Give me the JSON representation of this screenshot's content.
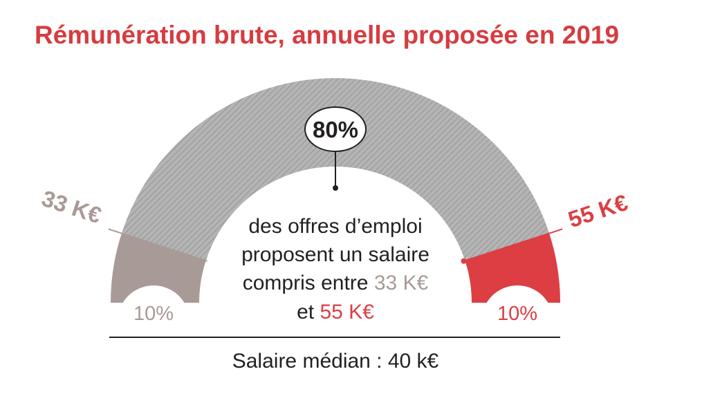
{
  "chart_data": {
    "type": "pie",
    "title": "Rémunération brute, annuelle proposée en 2019",
    "segments": [
      {
        "label": "< 33 K€",
        "value": 10,
        "value_label": "10%",
        "color": "#a89a96"
      },
      {
        "label": "33 K€ – 55 K€",
        "value": 80,
        "value_label": "80%",
        "color": "#a9a9a9"
      },
      {
        "label": "> 55 K€",
        "value": 10,
        "value_label": "10%",
        "color": "#dc3e44"
      }
    ],
    "boundaries": [
      {
        "label": "33 K€",
        "color": "#a89a96"
      },
      {
        "label": "55 K€",
        "color": "#dc3e44"
      }
    ],
    "callout": {
      "value_label": "80%",
      "line1": "des offres d’emploi",
      "line2": "proposent un salaire",
      "line3_prefix": "compris entre ",
      "line3_value": "33 K€",
      "line4_prefix": "et ",
      "line4_value": "55 K€"
    },
    "footer": "Salaire médian : 40 k€",
    "colors": {
      "title": "#d63c40",
      "text": "#231f20",
      "low": "#a89a96",
      "mid": "#a9a9a9",
      "high": "#dc3e44"
    }
  }
}
